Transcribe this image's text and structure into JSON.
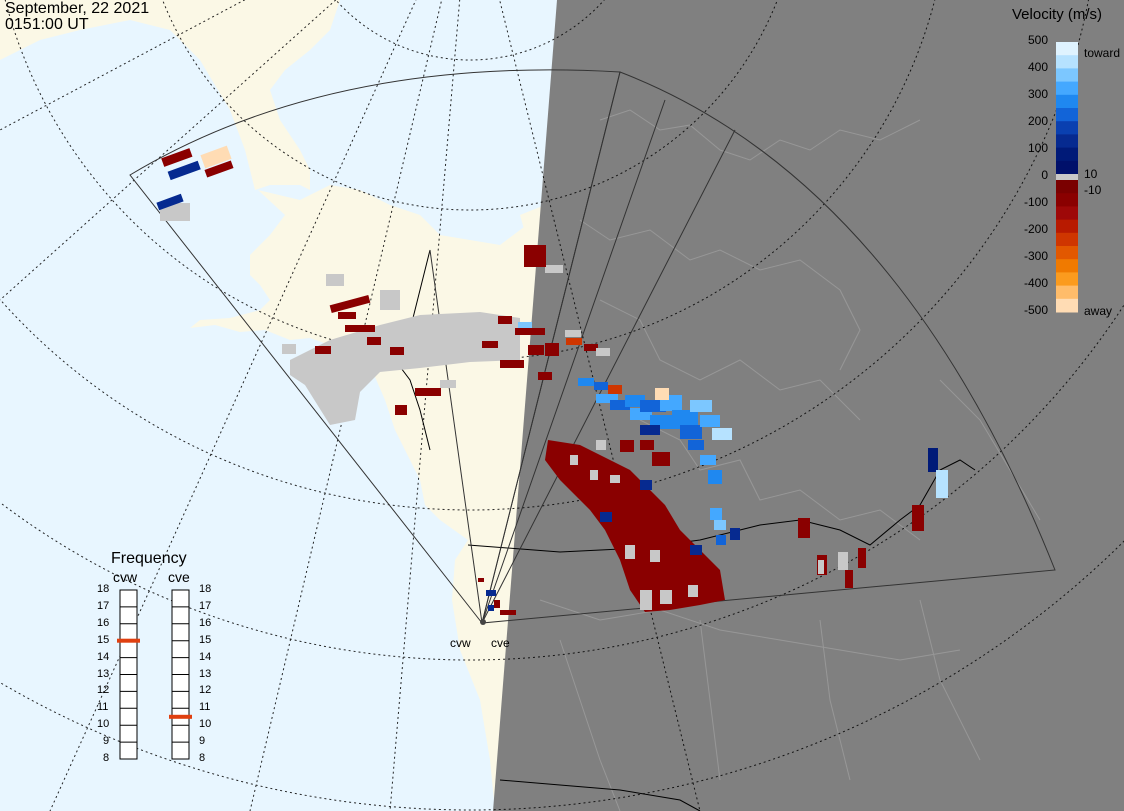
{
  "header": {
    "date": "September, 22 2021",
    "time": "0151:00 UT"
  },
  "velocity_scale": {
    "title": "Velocity (m/s)",
    "ticks": [
      "500",
      "400",
      "300",
      "200",
      "100",
      "0",
      "-100",
      "-200",
      "-300",
      "-400",
      "-500"
    ],
    "inner_ticks": [
      "10",
      "-10"
    ],
    "toward_label": "toward",
    "away_label": "away",
    "colors_toward": [
      "#dff3ff",
      "#b6e2ff",
      "#7cc7ff",
      "#44a8ff",
      "#1f88f0",
      "#1264d8",
      "#0a40b0",
      "#062a90",
      "#001a78",
      "#00106a"
    ],
    "color_zero": "#c8c8c8",
    "colors_away": [
      "#7a0000",
      "#8a0000",
      "#9e0808",
      "#b81a00",
      "#cf3600",
      "#e25800",
      "#f07a00",
      "#fb9b1e",
      "#ffbc6a",
      "#ffdcb4"
    ]
  },
  "frequency_panel": {
    "title": "Frequency",
    "radars": [
      {
        "name": "cvw",
        "selected_mhz": 15
      },
      {
        "name": "cve",
        "selected_mhz": 10.5
      }
    ],
    "scale": [
      "18",
      "17",
      "16",
      "15",
      "14",
      "13",
      "12",
      "11",
      "10",
      "9",
      "8"
    ],
    "marker_color": "#e04010"
  },
  "map": {
    "ocean_color": "#e8f6ff",
    "land_color": "#fbf8e6",
    "night_color": "#808080",
    "low_scatter_color": "#c8c8c8",
    "radar_sites": [
      {
        "id": "cvw",
        "label": "cvw"
      },
      {
        "id": "cve",
        "label": "cve"
      }
    ]
  }
}
